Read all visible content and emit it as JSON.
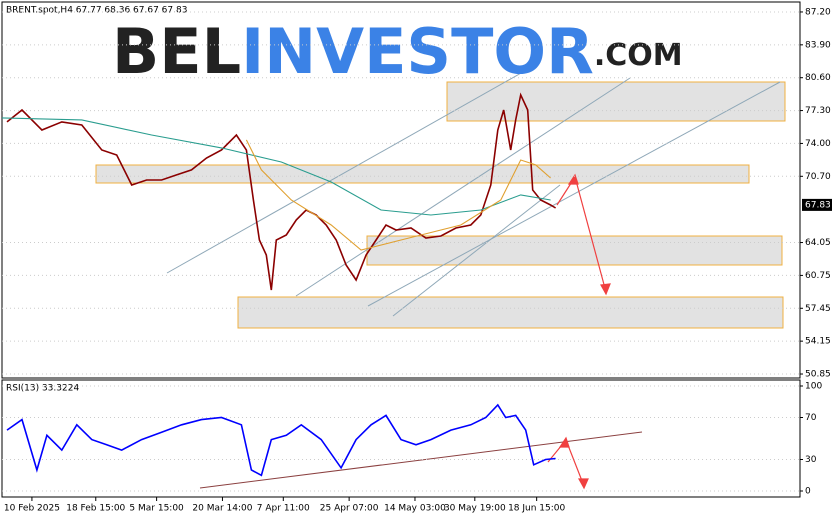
{
  "chart_data": [
    {
      "type": "line",
      "title": "BRENT.spot,H4  67.77 68.36 67.67 67.83",
      "watermark": [
        "BEL",
        "INVESTOR",
        ".COM"
      ],
      "last_price": 67.83,
      "xlim": [
        0,
        800
      ],
      "ylim": [
        50.45,
        88.2
      ],
      "grid": true,
      "yticks": [
        {
          "value": 87.2,
          "label": "87.20"
        },
        {
          "value": 83.9,
          "label": "83.90"
        },
        {
          "value": 80.6,
          "label": "80.60"
        },
        {
          "value": 77.3,
          "label": "77.30"
        },
        {
          "value": 74,
          "label": "74.00"
        },
        {
          "value": 70.7,
          "label": "70.70"
        },
        64.05,
        60.75,
        57.45,
        54.15,
        50.85
      ],
      "series": [
        {
          "color": "#8b0000",
          "x": [
            5,
            20,
            40,
            60,
            80,
            100,
            115,
            130,
            145,
            160,
            175,
            190,
            205,
            220,
            235,
            245,
            252,
            258,
            265,
            270,
            275,
            285,
            295,
            305,
            315,
            325,
            335,
            345,
            355,
            365,
            375,
            385,
            395,
            410,
            425,
            440,
            455,
            470,
            480,
            490,
            497,
            503,
            510,
            515,
            520,
            527,
            532,
            540,
            550,
            555
          ],
          "values": [
            76.16,
            77.36,
            75.35,
            76.16,
            75.85,
            73.34,
            72.84,
            69.83,
            70.33,
            70.33,
            70.84,
            71.34,
            72.54,
            73.34,
            74.85,
            73.34,
            68.32,
            64.31,
            62.8,
            59.29,
            64.31,
            64.81,
            66.32,
            67.32,
            66.82,
            65.81,
            64.31,
            61.8,
            60.29,
            62.8,
            64.31,
            65.81,
            65.31,
            65.51,
            64.51,
            64.71,
            65.51,
            65.81,
            66.82,
            69.83,
            75.35,
            77.36,
            73.34,
            76.36,
            78.87,
            77.36,
            69.33,
            68.32,
            67.82,
            67.52
          ]
        },
        {
          "color": "#2a9d8f",
          "x": [
            0,
            80,
            150,
            220,
            280,
            330,
            380,
            430,
            480,
            520,
            550
          ],
          "values": [
            76.56,
            76.36,
            74.85,
            73.55,
            72.14,
            70.13,
            67.32,
            66.82,
            67.32,
            68.83,
            68.32
          ]
        },
        {
          "color": "#e0a030",
          "x": [
            245,
            260,
            290,
            330,
            360,
            400,
            460,
            500,
            520,
            535,
            550
          ],
          "values": [
            74.35,
            71.34,
            68.32,
            65.81,
            63.3,
            64.31,
            65.81,
            68.32,
            72.34,
            71.84,
            70.53
          ]
        }
      ]
    },
    {
      "type": "line",
      "title": "RSI(13) 33.3224",
      "xlim": [
        0,
        800
      ],
      "ylim": [
        -5.7,
        105.7
      ],
      "yticks": [
        0,
        30,
        70,
        100
      ],
      "xticks": [
        {
          "value": 30,
          "label": "10 Feb 2025"
        },
        {
          "value": 94,
          "label": "18 Feb 15:00"
        },
        {
          "value": 155,
          "label": "5 Mar 15:00"
        },
        {
          "value": 221,
          "label": "20 Mar 14:00"
        },
        {
          "value": 282,
          "label": "7 Apr 11:00"
        },
        {
          "value": 348,
          "label": "25 Apr 07:00"
        },
        {
          "value": 414,
          "label": "14 May 03:00"
        },
        {
          "value": 474,
          "label": "30 May 19:00"
        },
        {
          "value": 536,
          "label": "18 Jun 15:00"
        }
      ],
      "series": [
        {
          "color": "#0000ff",
          "x": [
            5,
            20,
            35,
            45,
            60,
            75,
            90,
            105,
            120,
            140,
            160,
            180,
            200,
            220,
            240,
            250,
            260,
            270,
            285,
            300,
            320,
            340,
            355,
            370,
            385,
            400,
            415,
            430,
            450,
            470,
            485,
            497,
            505,
            515,
            525,
            533,
            545,
            555
          ],
          "values": [
            58,
            68,
            20,
            53,
            39,
            63,
            49,
            44,
            39,
            49,
            56,
            63,
            68,
            70,
            63,
            20,
            15,
            49,
            53,
            63,
            49,
            22,
            49,
            63,
            72,
            49,
            44,
            49,
            58,
            63,
            70,
            82,
            70,
            72,
            58,
            25,
            30,
            31
          ]
        }
      ]
    }
  ]
}
